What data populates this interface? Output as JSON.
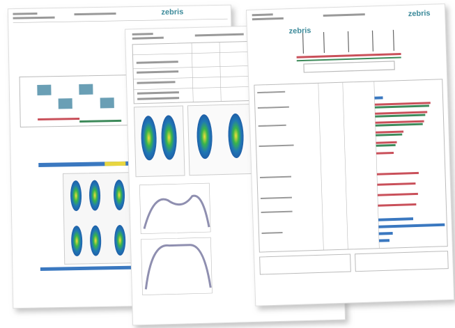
{
  "pages": [
    {
      "logo": "zebris"
    },
    {
      "logo": "zebris"
    },
    {
      "logo": "zebris"
    }
  ]
}
